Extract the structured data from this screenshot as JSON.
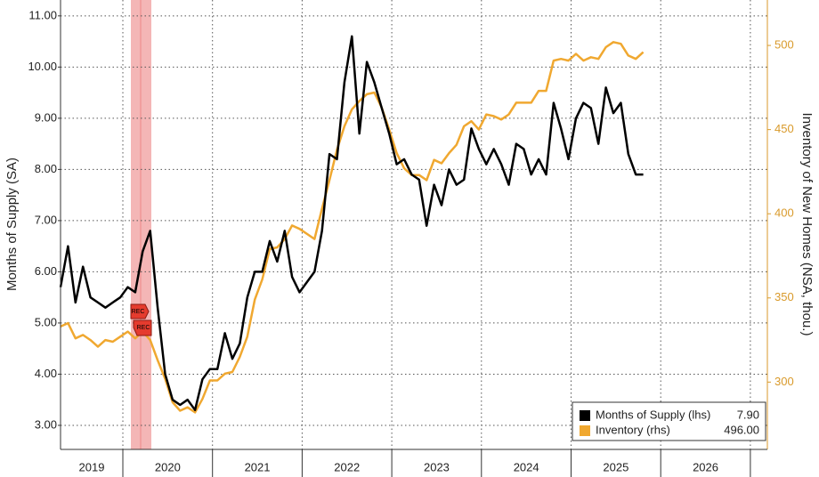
{
  "chart_data": {
    "type": "line",
    "y_label": "Months of Supply (SA)",
    "y2_label": "Inventory of New Homes (NSA, thou.)",
    "annotations": [
      "REC",
      "REC"
    ],
    "xticks": [
      "2019",
      "2020",
      "2021",
      "2022",
      "2023",
      "2024",
      "2025",
      "2026"
    ],
    "x": [
      "2019",
      "2019",
      "2019",
      "2019",
      "2019",
      "2019",
      "2019",
      "2019",
      "2020",
      "2020",
      "2020",
      "2020",
      "2020",
      "2020",
      "2020",
      "2020",
      "2020",
      "2020",
      "2020",
      "2020",
      "2021",
      "2021",
      "2021",
      "2021",
      "2021",
      "2021",
      "2021",
      "2021",
      "2021",
      "2021",
      "2021",
      "2021",
      "2022",
      "2022",
      "2022",
      "2022",
      "2022",
      "2022",
      "2022",
      "2022",
      "2022",
      "2022",
      "2022",
      "2022",
      "2023",
      "2023",
      "2023",
      "2023",
      "2023",
      "2023",
      "2023",
      "2023",
      "2023",
      "2023",
      "2023",
      "2023",
      "2024",
      "2024",
      "2024",
      "2024",
      "2024",
      "2024",
      "2024",
      "2024",
      "2024",
      "2024",
      "2024",
      "2024",
      "2025",
      "2025",
      "2025",
      "2025",
      "2025",
      "2025",
      "2025",
      "2025",
      "2025",
      "2025",
      "2025"
    ],
    "series": [
      {
        "name": "Months of Supply (lhs)",
        "color": "#000000",
        "last_value_label": "7.90",
        "values": [
          5.7,
          6.5,
          5.4,
          6.1,
          5.5,
          5.4,
          5.3,
          5.4,
          5.5,
          5.7,
          5.6,
          6.4,
          6.8,
          5.3,
          4.0,
          3.5,
          3.4,
          3.5,
          3.3,
          3.9,
          4.1,
          4.1,
          4.8,
          4.3,
          4.6,
          5.5,
          6.0,
          6.0,
          6.6,
          6.2,
          6.8,
          5.9,
          5.6,
          5.8,
          6.0,
          6.8,
          8.3,
          8.2,
          9.7,
          10.6,
          8.7,
          10.1,
          9.7,
          9.2,
          8.7,
          8.1,
          8.2,
          7.9,
          7.8,
          6.9,
          7.7,
          7.3,
          8.0,
          7.7,
          7.8,
          8.8,
          8.4,
          8.1,
          8.4,
          8.1,
          7.7,
          8.5,
          8.4,
          7.9,
          8.2,
          7.9,
          9.3,
          8.8,
          8.2,
          9.0,
          9.3,
          9.2,
          8.5,
          9.6,
          9.1,
          9.3,
          8.3,
          7.9,
          7.9
        ]
      },
      {
        "name": "Inventory (rhs)",
        "color": "#f0a830",
        "axis": "y2",
        "last_value_label": "496.00",
        "values": [
          333,
          335,
          326,
          328,
          325,
          321,
          325,
          324,
          327,
          330,
          326,
          330,
          325,
          313,
          302,
          288,
          283,
          285,
          282,
          290,
          301,
          301,
          305,
          306,
          315,
          327,
          349,
          361,
          379,
          380,
          385,
          393,
          391,
          388,
          385,
          403,
          420,
          438,
          452,
          462,
          467,
          471,
          472,
          463,
          450,
          436,
          427,
          423,
          423,
          420,
          432,
          430,
          436,
          441,
          452,
          455,
          450,
          459,
          458,
          456,
          459,
          466,
          466,
          466,
          473,
          473,
          491,
          492,
          491,
          495,
          491,
          493,
          492,
          499,
          502,
          501,
          494,
          492,
          496
        ]
      }
    ],
    "ylim": [
      2.53,
      11.31
    ],
    "yticks": [
      {
        "value": 3,
        "label": "3.00"
      },
      {
        "value": 4,
        "label": "4.00"
      },
      {
        "value": 5,
        "label": "5.00"
      },
      {
        "value": 6,
        "label": "6.00"
      },
      {
        "value": 7,
        "label": "7.00"
      },
      {
        "value": 8,
        "label": "8.00"
      },
      {
        "value": 9,
        "label": "9.00"
      },
      {
        "value": 10,
        "label": "10.00"
      },
      {
        "value": 11,
        "label": "11.00"
      }
    ],
    "y2lim": [
      260,
      527
    ],
    "y2ticks": [
      300,
      350,
      400,
      450,
      500
    ],
    "grid": true,
    "legend": "lower right"
  }
}
